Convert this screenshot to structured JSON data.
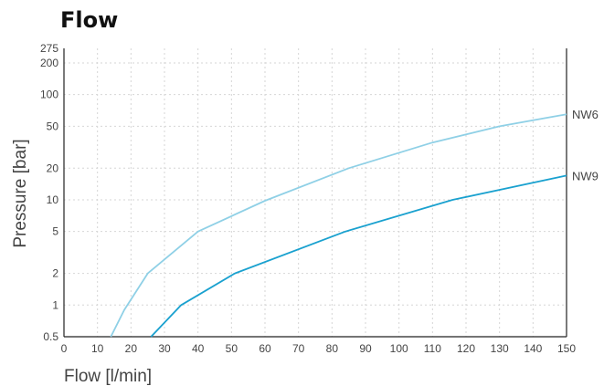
{
  "chart_data": {
    "type": "line",
    "title": "Flow",
    "xlabel": "Flow [l/min]",
    "ylabel": "Pressure [bar]",
    "x_scale": "linear",
    "y_scale": "log",
    "xlim": [
      0,
      150
    ],
    "ylim": [
      0.5,
      275
    ],
    "x_ticks": [
      0,
      10,
      20,
      30,
      40,
      50,
      60,
      70,
      80,
      90,
      100,
      110,
      120,
      130,
      140,
      150
    ],
    "y_ticks": [
      0.5,
      1,
      2,
      5,
      10,
      20,
      50,
      100,
      200,
      275
    ],
    "grid": true,
    "series": [
      {
        "name": "NW6",
        "color": "#8fd0e6",
        "x": [
          14,
          18,
          25,
          40,
          60,
          85,
          110,
          130,
          150
        ],
        "y": [
          0.5,
          0.9,
          2,
          5,
          9.8,
          20,
          35,
          50,
          65
        ]
      },
      {
        "name": "NW9",
        "color": "#1aa1cf",
        "x": [
          26,
          35,
          51,
          84,
          116,
          150
        ],
        "y": [
          0.5,
          1.0,
          2.0,
          5.0,
          10.0,
          17.0
        ]
      }
    ]
  }
}
